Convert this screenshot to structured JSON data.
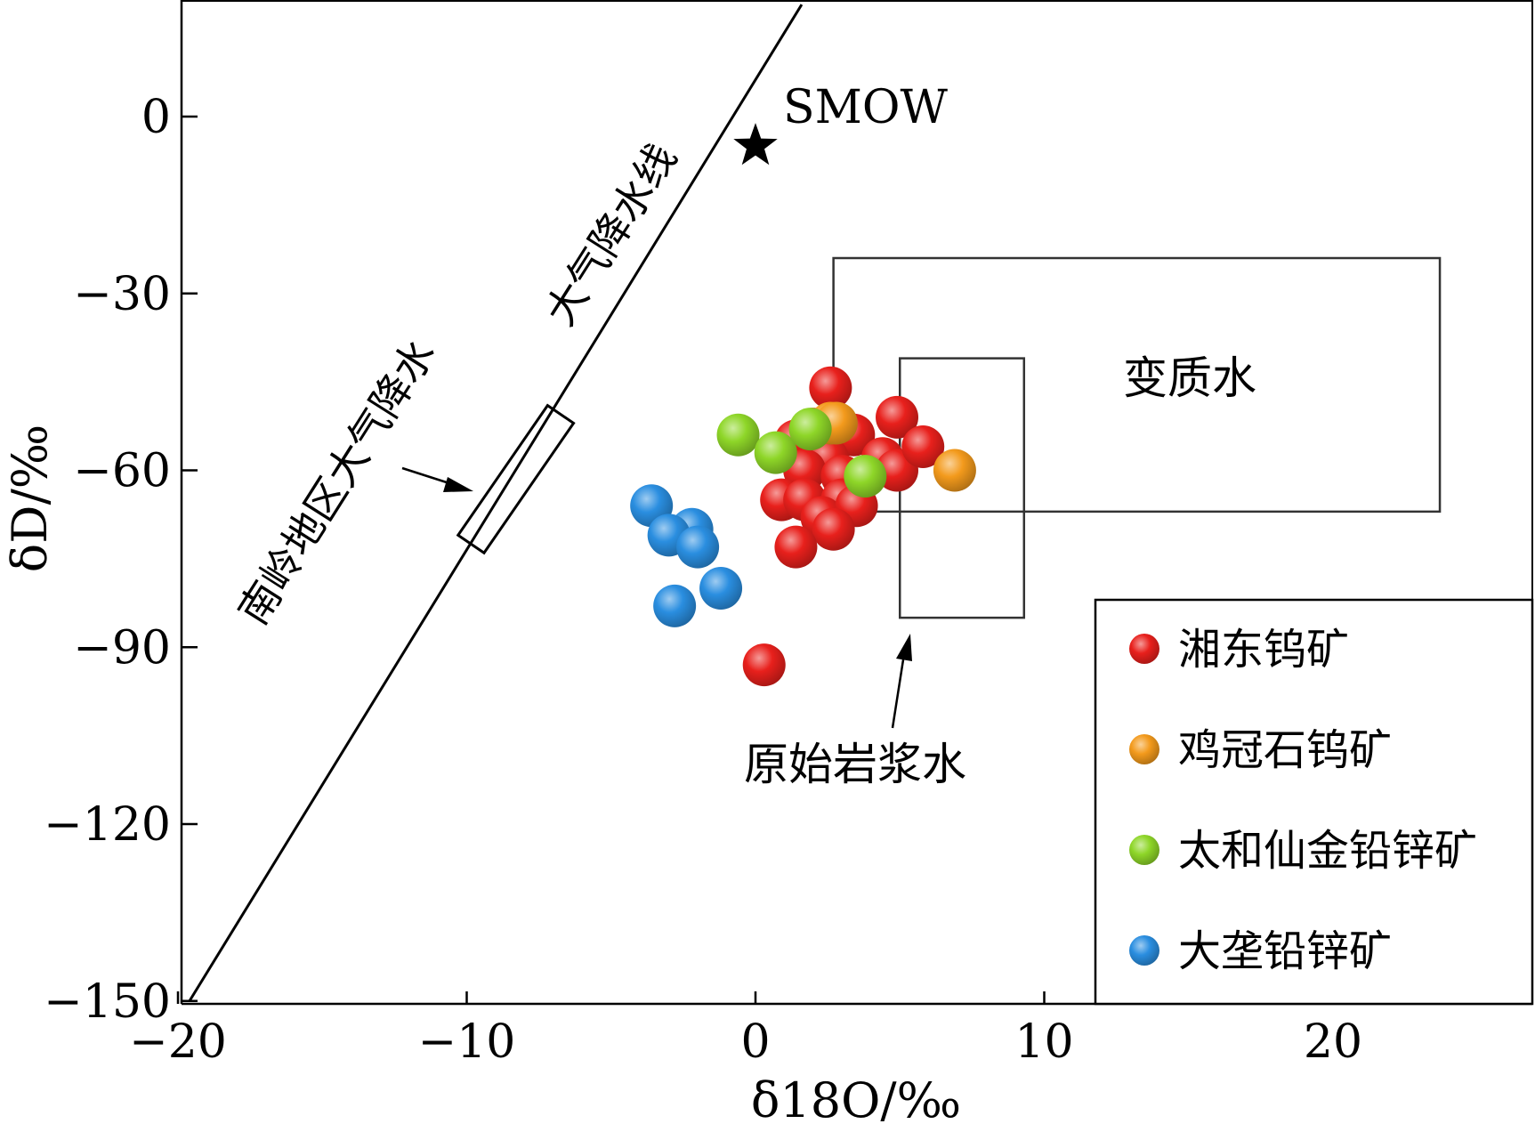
{
  "chart_data": {
    "type": "scatter",
    "title": "",
    "xlabel": "δ18O/‰",
    "ylabel": "δD/‰",
    "xlim": [
      -20,
      27
    ],
    "ylim": [
      -150,
      19
    ],
    "xticks": [
      "−20",
      "−10",
      "0",
      "10",
      "20"
    ],
    "xtick_values": [
      -20,
      -10,
      0,
      10,
      20
    ],
    "yticks": [
      "0",
      "−30",
      "−60",
      "−90",
      "−120",
      "−150"
    ],
    "ytick_values": [
      0,
      -30,
      -60,
      -90,
      -120,
      -150
    ],
    "grid": false,
    "legend_position": "bottom-right",
    "meteoric_line": {
      "label": "大气降水线",
      "points": [
        [
          -19.6,
          -150
        ],
        [
          1.6,
          19
        ]
      ]
    },
    "smow": {
      "label": "SMOW",
      "x": 0,
      "y": -5
    },
    "regions": [
      {
        "label": "变质水",
        "x": [
          2.7,
          23.7
        ],
        "y": [
          -67,
          -24
        ]
      },
      {
        "label": "原始岩浆水",
        "x": [
          5,
          9.3
        ],
        "y": [
          -85,
          -41
        ]
      },
      {
        "label": "南岭地区大气降水",
        "corners": [
          [
            -10.3,
            -71
          ],
          [
            -9.4,
            -74
          ],
          [
            -6.3,
            -52
          ],
          [
            -7.2,
            -49
          ]
        ]
      }
    ],
    "series": [
      {
        "name": "湘东钨矿",
        "color": "#e8201c",
        "points": [
          [
            2.6,
            -46
          ],
          [
            1.4,
            -55
          ],
          [
            2.0,
            -53
          ],
          [
            3.4,
            -54
          ],
          [
            2.5,
            -58
          ],
          [
            1.7,
            -60
          ],
          [
            3.0,
            -61
          ],
          [
            4.4,
            -58
          ],
          [
            4.9,
            -60
          ],
          [
            4.9,
            -51
          ],
          [
            5.8,
            -56
          ],
          [
            0.9,
            -65
          ],
          [
            1.7,
            -65
          ],
          [
            3.0,
            -65
          ],
          [
            2.3,
            -68
          ],
          [
            3.5,
            -66
          ],
          [
            2.7,
            -70
          ],
          [
            1.4,
            -73
          ],
          [
            0.3,
            -93
          ]
        ]
      },
      {
        "name": "鸡冠石钨矿",
        "color": "#f39a1c",
        "points": [
          [
            2.6,
            -52
          ],
          [
            2.8,
            -52
          ],
          [
            6.9,
            -60
          ]
        ]
      },
      {
        "name": "太和仙金铅锌矿",
        "color": "#8ed628",
        "points": [
          [
            -0.6,
            -54
          ],
          [
            0.7,
            -57
          ],
          [
            1.9,
            -53
          ],
          [
            3.8,
            -61
          ]
        ]
      },
      {
        "name": "大垄铅锌矿",
        "color": "#2a8ee0",
        "points": [
          [
            -3.6,
            -66
          ],
          [
            -2.2,
            -70
          ],
          [
            -3.0,
            -71
          ],
          [
            -2.0,
            -73
          ],
          [
            -1.2,
            -80
          ],
          [
            -2.8,
            -83
          ]
        ]
      }
    ]
  },
  "annotations": {
    "smow": "SMOW",
    "meteoric_line": "大气降水线",
    "metamorphic_water": "变质水",
    "magmatic_water": "原始岩浆水",
    "nanling_precip": "南岭地区大气降水"
  }
}
